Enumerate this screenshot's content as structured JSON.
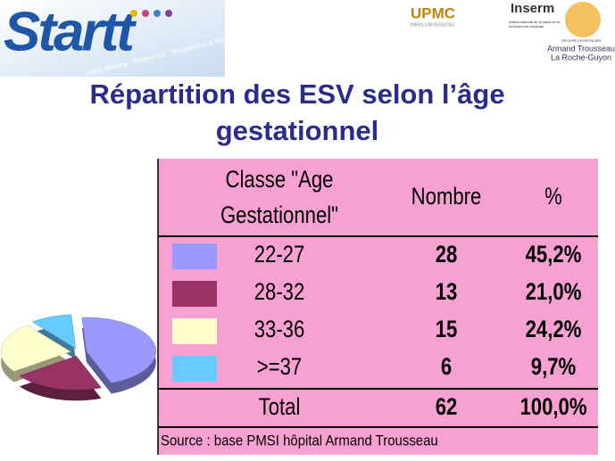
{
  "header": {
    "logo": "Startt",
    "sites": [
      "Saint-Antoine",
      "Rothschild",
      "Trousseau/La Roche Guyon",
      "Tenon"
    ],
    "upmc": "UPMC",
    "upmc_sub": "PARIS UNIVERSITAS",
    "inserm": "Inserm",
    "inserm_sub": "Institut national de la santé et de la recherche médicale",
    "hospital": [
      "GROUPE HOSPITALIER",
      "Armand Trousseau",
      "La Roche-Guyon"
    ]
  },
  "title": [
    "Répartition des ESV selon l’âge",
    "gestationnel"
  ],
  "table": {
    "header": [
      "Classe \"Age",
      "Gestationnel\"",
      "Nombre",
      "%"
    ],
    "rows": [
      {
        "label": "22-27",
        "count": 28,
        "percent": "45,2%",
        "color": "#9999ff"
      },
      {
        "label": "28-32",
        "count": 13,
        "percent": "21,0%",
        "color": "#993366"
      },
      {
        "label": "33-36",
        "count": 15,
        "percent": "24,2%",
        "color": "#ffffcc"
      },
      {
        "label": ">=37",
        "count": 6,
        "percent": "9,7%",
        "color": "#66ccff"
      }
    ],
    "total": {
      "label": "Total",
      "count": 62,
      "percent": "100,0%"
    },
    "source": "Source : base PMSI hôpital Armand Trousseau"
  }
}
